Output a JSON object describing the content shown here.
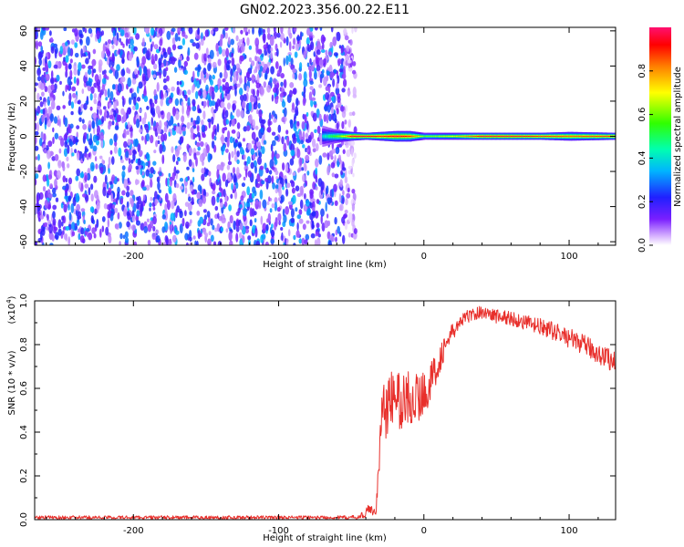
{
  "title": "GN02.2023.356.00.22.E11",
  "colors": {
    "snr_line": "#e8302c",
    "axis": "#000000"
  },
  "chart_data": [
    {
      "type": "heatmap",
      "xlabel": "Height of straight line (km)",
      "ylabel": "Frequency (Hz)",
      "xlim": [
        -268,
        132
      ],
      "ylim": [
        -62,
        62
      ],
      "x_ticks": [
        -200,
        -100,
        0,
        100
      ],
      "x_tick_labels": [
        "-200",
        "-100",
        "0",
        "100"
      ],
      "y_ticks": [
        -60,
        -40,
        -20,
        0,
        20,
        40,
        60
      ],
      "y_tick_labels": [
        "-60",
        "-40",
        "-20",
        "0",
        "20",
        "40",
        "60"
      ],
      "colorbar": {
        "label": "Normalized spectral amplitude",
        "range": [
          0,
          1
        ],
        "ticks": [
          0,
          0.2,
          0.4,
          0.6,
          0.8
        ],
        "tick_labels": [
          "0.0",
          "0.2",
          "0.4",
          "0.6",
          "0.8"
        ],
        "colormap": "rainbow"
      },
      "noise_region": {
        "x_range": [
          -268,
          -55
        ],
        "freq_range": [
          -62,
          62
        ],
        "amplitude": [
          0.05,
          0.35
        ]
      },
      "signal_band": {
        "center_freq": 0,
        "x": [
          -70,
          -62,
          -55,
          -50,
          -40,
          -30,
          -20,
          -10,
          0,
          20,
          40,
          60,
          80,
          100,
          132
        ],
        "half_width_hz": [
          6,
          4,
          3,
          2.5,
          2,
          2.5,
          3,
          3,
          2,
          2,
          2,
          2,
          2,
          2.5,
          2
        ],
        "peak_amplitude": [
          0.4,
          0.55,
          0.7,
          0.95,
          0.95,
          0.9,
          0.95,
          0.9,
          0.6,
          0.7,
          0.95,
          0.95,
          0.9,
          0.85,
          0.9
        ]
      }
    },
    {
      "type": "line",
      "xlabel": "Height of straight line (km)",
      "ylabel": "SNR (10 * v/v)",
      "y_multiplier": "(x10",
      "y_multiplier_exp": "4",
      "y_multiplier_close": ")",
      "xlim": [
        -268,
        132
      ],
      "ylim": [
        0,
        1.0
      ],
      "x_ticks": [
        -200,
        -100,
        0,
        100
      ],
      "x_tick_labels": [
        "-200",
        "-100",
        "0",
        "100"
      ],
      "y_ticks": [
        0,
        0.2,
        0.4,
        0.6,
        0.8,
        1.0
      ],
      "y_tick_labels": [
        "0.0",
        "0.2",
        "0.4",
        "0.6",
        "0.8",
        "1.0"
      ],
      "series": [
        {
          "x": [
            -268,
            -200,
            -100,
            -60,
            -45,
            -40,
            -38,
            -35,
            -33,
            -30,
            -28,
            -25,
            -20,
            -15,
            -10,
            -5,
            0,
            5,
            10,
            15,
            20,
            25,
            30,
            35,
            40,
            45,
            50,
            60,
            70,
            80,
            90,
            100,
            110,
            120,
            132
          ],
          "y": [
            0.01,
            0.01,
            0.01,
            0.01,
            0.01,
            0.03,
            0.05,
            0.04,
            0.04,
            0.35,
            0.55,
            0.5,
            0.58,
            0.52,
            0.57,
            0.55,
            0.58,
            0.63,
            0.72,
            0.8,
            0.86,
            0.9,
            0.93,
            0.94,
            0.95,
            0.94,
            0.93,
            0.92,
            0.9,
            0.88,
            0.86,
            0.83,
            0.8,
            0.76,
            0.72
          ],
          "noise_amplitude": [
            0.008,
            0.008,
            0.008,
            0.008,
            0.01,
            0.02,
            0.02,
            0.02,
            0.02,
            0.12,
            0.15,
            0.15,
            0.14,
            0.14,
            0.14,
            0.12,
            0.1,
            0.09,
            0.07,
            0.05,
            0.04,
            0.035,
            0.03,
            0.03,
            0.03,
            0.03,
            0.035,
            0.035,
            0.035,
            0.04,
            0.04,
            0.045,
            0.045,
            0.05,
            0.05
          ]
        }
      ]
    }
  ]
}
